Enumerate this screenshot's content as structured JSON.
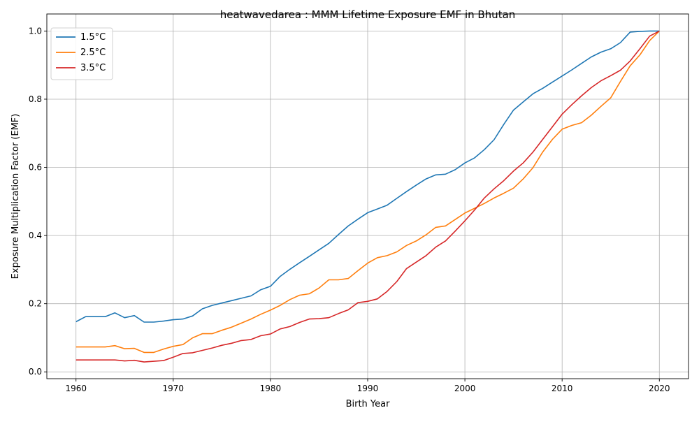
{
  "chart_data": {
    "type": "line",
    "title": "heatwavedarea : MMM Lifetime Exposure EMF in Bhutan",
    "xlabel": "Birth Year",
    "ylabel": "Exposure Multiplication Factor (EMF)",
    "xlim": [
      1957,
      2023
    ],
    "ylim": [
      -0.02,
      1.05
    ],
    "xticks": [
      1960,
      1970,
      1980,
      1990,
      2000,
      2010,
      2020
    ],
    "yticks": [
      0.0,
      0.2,
      0.4,
      0.6,
      0.8,
      1.0
    ],
    "xtick_labels": [
      "1960",
      "1970",
      "1980",
      "1990",
      "2000",
      "2010",
      "2020"
    ],
    "ytick_labels": [
      "0.0",
      "0.2",
      "0.4",
      "0.6",
      "0.8",
      "1.0"
    ],
    "grid": true,
    "legend_position": "top-left",
    "x": [
      1960,
      1961,
      1962,
      1963,
      1964,
      1965,
      1966,
      1967,
      1968,
      1969,
      1970,
      1971,
      1972,
      1973,
      1974,
      1975,
      1976,
      1977,
      1978,
      1979,
      1980,
      1981,
      1982,
      1983,
      1984,
      1985,
      1986,
      1987,
      1988,
      1989,
      1990,
      1991,
      1992,
      1993,
      1994,
      1995,
      1996,
      1997,
      1998,
      1999,
      2000,
      2001,
      2002,
      2003,
      2004,
      2005,
      2006,
      2007,
      2008,
      2009,
      2010,
      2011,
      2012,
      2013,
      2014,
      2015,
      2016,
      2017,
      2018,
      2019,
      2020
    ],
    "series": [
      {
        "name": "1.5°C",
        "color": "#1f77b4",
        "values": [
          0.147,
          0.162,
          0.162,
          0.162,
          0.173,
          0.159,
          0.165,
          0.146,
          0.146,
          0.149,
          0.153,
          0.155,
          0.164,
          0.185,
          0.195,
          0.202,
          0.209,
          0.216,
          0.223,
          0.241,
          0.251,
          0.28,
          0.301,
          0.32,
          0.339,
          0.358,
          0.377,
          0.403,
          0.428,
          0.448,
          0.467,
          0.478,
          0.489,
          0.509,
          0.529,
          0.548,
          0.566,
          0.578,
          0.58,
          0.593,
          0.613,
          0.628,
          0.652,
          0.681,
          0.726,
          0.768,
          0.792,
          0.816,
          0.832,
          0.85,
          0.868,
          0.886,
          0.905,
          0.924,
          0.938,
          0.948,
          0.966,
          0.997,
          0.999,
          1.0,
          1.0
        ]
      },
      {
        "name": "2.5°C",
        "color": "#ff7f0e",
        "values": [
          0.073,
          0.073,
          0.073,
          0.073,
          0.077,
          0.068,
          0.069,
          0.057,
          0.057,
          0.067,
          0.075,
          0.08,
          0.1,
          0.112,
          0.112,
          0.122,
          0.131,
          0.143,
          0.155,
          0.169,
          0.181,
          0.195,
          0.212,
          0.225,
          0.229,
          0.246,
          0.27,
          0.27,
          0.274,
          0.297,
          0.319,
          0.335,
          0.341,
          0.352,
          0.371,
          0.384,
          0.402,
          0.424,
          0.428,
          0.447,
          0.466,
          0.48,
          0.494,
          0.51,
          0.524,
          0.539,
          0.566,
          0.599,
          0.645,
          0.682,
          0.712,
          0.723,
          0.731,
          0.753,
          0.779,
          0.804,
          0.852,
          0.898,
          0.93,
          0.972,
          1.0
        ]
      },
      {
        "name": "3.5°C",
        "color": "#d62728",
        "values": [
          0.035,
          0.035,
          0.035,
          0.035,
          0.035,
          0.032,
          0.034,
          0.029,
          0.031,
          0.033,
          0.043,
          0.054,
          0.056,
          0.063,
          0.07,
          0.078,
          0.084,
          0.092,
          0.095,
          0.106,
          0.111,
          0.126,
          0.133,
          0.145,
          0.155,
          0.156,
          0.159,
          0.171,
          0.182,
          0.203,
          0.207,
          0.214,
          0.236,
          0.265,
          0.303,
          0.322,
          0.341,
          0.366,
          0.384,
          0.413,
          0.443,
          0.475,
          0.51,
          0.537,
          0.561,
          0.589,
          0.613,
          0.645,
          0.682,
          0.719,
          0.756,
          0.784,
          0.81,
          0.834,
          0.854,
          0.869,
          0.885,
          0.912,
          0.948,
          0.985,
          1.0
        ]
      }
    ]
  }
}
